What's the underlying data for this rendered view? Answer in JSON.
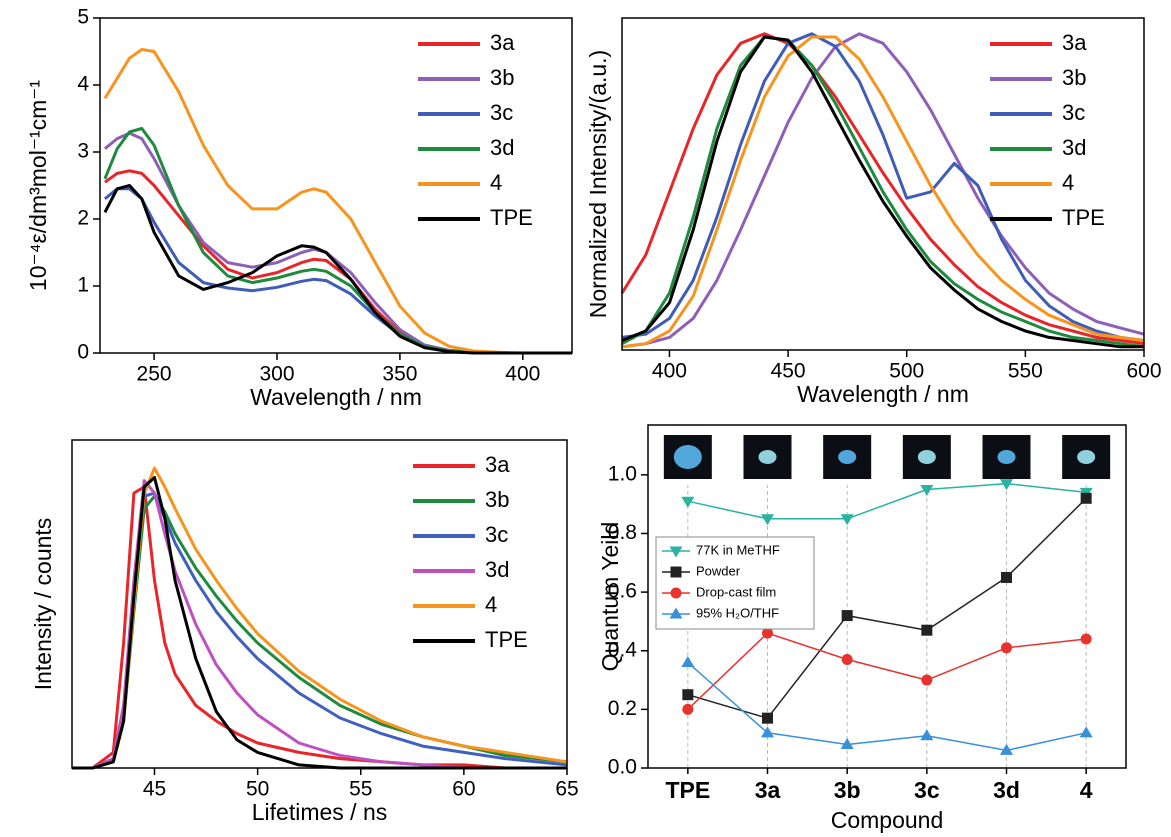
{
  "chart_data": [
    {
      "type": "line",
      "xlabel": "Wavelength / nm",
      "ylabel": "10⁻⁴ε/dm³mol⁻¹cm⁻¹",
      "x": [
        230,
        235,
        240,
        245,
        250,
        260,
        270,
        280,
        290,
        300,
        310,
        315,
        320,
        330,
        340,
        350,
        360,
        370,
        380,
        390,
        400,
        420
      ],
      "xlim": [
        228,
        420
      ],
      "xticks": [
        250,
        300,
        350,
        400
      ],
      "ylim": [
        0,
        5
      ],
      "yticks": [
        0,
        1,
        2,
        3,
        4,
        5
      ],
      "legend": "upper right",
      "series": [
        {
          "name": "3a",
          "color": "#e8262a",
          "values": [
            2.55,
            2.68,
            2.72,
            2.68,
            2.5,
            2.05,
            1.6,
            1.25,
            1.12,
            1.2,
            1.35,
            1.4,
            1.38,
            1.1,
            0.65,
            0.3,
            0.1,
            0.03,
            0.01,
            0,
            0,
            0
          ]
        },
        {
          "name": "3b",
          "color": "#8e5fb8",
          "values": [
            3.05,
            3.2,
            3.28,
            3.2,
            2.9,
            2.2,
            1.65,
            1.35,
            1.28,
            1.35,
            1.5,
            1.55,
            1.5,
            1.2,
            0.75,
            0.35,
            0.12,
            0.04,
            0.01,
            0,
            0,
            0
          ]
        },
        {
          "name": "3c",
          "color": "#3f5cb8",
          "values": [
            2.3,
            2.45,
            2.45,
            2.3,
            1.95,
            1.35,
            1.05,
            0.97,
            0.93,
            0.98,
            1.07,
            1.1,
            1.08,
            0.88,
            0.55,
            0.27,
            0.09,
            0.03,
            0.01,
            0,
            0,
            0
          ]
        },
        {
          "name": "3d",
          "color": "#1d8a3e",
          "values": [
            2.6,
            3.05,
            3.3,
            3.35,
            3.1,
            2.2,
            1.5,
            1.15,
            1.05,
            1.12,
            1.22,
            1.25,
            1.22,
            1.0,
            0.6,
            0.28,
            0.1,
            0.03,
            0.01,
            0,
            0,
            0
          ]
        },
        {
          "name": "4",
          "color": "#f7941d",
          "values": [
            3.8,
            4.1,
            4.4,
            4.53,
            4.5,
            3.9,
            3.1,
            2.5,
            2.15,
            2.15,
            2.4,
            2.45,
            2.4,
            2.0,
            1.35,
            0.7,
            0.3,
            0.1,
            0.03,
            0.01,
            0,
            0
          ]
        },
        {
          "name": "TPE",
          "color": "#000000",
          "values": [
            2.1,
            2.45,
            2.5,
            2.3,
            1.8,
            1.15,
            0.95,
            1.05,
            1.2,
            1.45,
            1.6,
            1.58,
            1.5,
            1.1,
            0.6,
            0.25,
            0.08,
            0.02,
            0,
            0,
            0,
            0
          ]
        }
      ]
    },
    {
      "type": "line",
      "xlabel": "Wavelength / nm",
      "ylabel": "Normalized Intensity/(a.u.)",
      "x": [
        380,
        390,
        400,
        410,
        420,
        430,
        440,
        450,
        460,
        470,
        480,
        490,
        500,
        510,
        520,
        530,
        540,
        550,
        560,
        570,
        580,
        590,
        600
      ],
      "xlim": [
        380,
        600
      ],
      "xticks": [
        400,
        450,
        500,
        550,
        600
      ],
      "ylim": [
        0,
        1.05
      ],
      "legend": "upper right",
      "series": [
        {
          "name": "3a",
          "color": "#e8262a",
          "values": [
            0.18,
            0.3,
            0.5,
            0.7,
            0.87,
            0.97,
            1.0,
            0.97,
            0.9,
            0.8,
            0.68,
            0.56,
            0.45,
            0.35,
            0.27,
            0.2,
            0.15,
            0.11,
            0.08,
            0.06,
            0.04,
            0.03,
            0.02
          ]
        },
        {
          "name": "3b",
          "color": "#8e5fb8",
          "values": [
            0.01,
            0.02,
            0.04,
            0.1,
            0.22,
            0.38,
            0.55,
            0.72,
            0.86,
            0.96,
            1.0,
            0.97,
            0.88,
            0.76,
            0.62,
            0.48,
            0.36,
            0.26,
            0.18,
            0.13,
            0.09,
            0.07,
            0.05
          ]
        },
        {
          "name": "3c",
          "color": "#3f5cb8",
          "values": [
            0.04,
            0.05,
            0.1,
            0.22,
            0.42,
            0.65,
            0.85,
            0.97,
            1.0,
            0.96,
            0.85,
            0.68,
            0.48,
            0.5,
            0.59,
            0.52,
            0.35,
            0.22,
            0.14,
            0.09,
            0.06,
            0.04,
            0.03
          ]
        },
        {
          "name": "3d",
          "color": "#1d8a3e",
          "values": [
            0.02,
            0.06,
            0.18,
            0.42,
            0.7,
            0.9,
            0.99,
            0.98,
            0.9,
            0.78,
            0.64,
            0.5,
            0.38,
            0.28,
            0.21,
            0.16,
            0.12,
            0.09,
            0.06,
            0.04,
            0.03,
            0.02,
            0.01
          ]
        },
        {
          "name": "4",
          "color": "#f7941d",
          "values": [
            0.01,
            0.02,
            0.06,
            0.17,
            0.38,
            0.6,
            0.8,
            0.93,
            0.99,
            0.99,
            0.92,
            0.8,
            0.66,
            0.52,
            0.4,
            0.3,
            0.22,
            0.16,
            0.11,
            0.08,
            0.05,
            0.04,
            0.03
          ]
        },
        {
          "name": "TPE",
          "color": "#000000",
          "values": [
            0.03,
            0.06,
            0.15,
            0.38,
            0.66,
            0.88,
            0.99,
            0.98,
            0.88,
            0.74,
            0.6,
            0.47,
            0.36,
            0.26,
            0.19,
            0.13,
            0.09,
            0.06,
            0.04,
            0.03,
            0.02,
            0.01,
            0.01
          ]
        }
      ]
    },
    {
      "type": "line",
      "xlabel": "Lifetimes / ns",
      "ylabel": "Intensity / counts",
      "x": [
        41,
        42,
        43,
        43.5,
        44,
        44.5,
        45,
        45.5,
        46,
        47,
        48,
        49,
        50,
        52,
        54,
        56,
        58,
        60,
        62,
        65
      ],
      "xlim": [
        41,
        65
      ],
      "xticks": [
        45,
        50,
        55,
        60,
        65
      ],
      "ylim": [
        0,
        1.05
      ],
      "legend": "upper right",
      "series": [
        {
          "name": "3a",
          "color": "#e8262a",
          "values": [
            0,
            0,
            0.05,
            0.4,
            0.88,
            0.9,
            0.6,
            0.4,
            0.3,
            0.2,
            0.15,
            0.11,
            0.08,
            0.05,
            0.03,
            0.02,
            0.01,
            0.01,
            0,
            0
          ]
        },
        {
          "name": "3b",
          "color": "#1d8a3e",
          "values": [
            0,
            0,
            0.02,
            0.15,
            0.5,
            0.83,
            0.87,
            0.82,
            0.75,
            0.64,
            0.55,
            0.47,
            0.4,
            0.29,
            0.2,
            0.14,
            0.1,
            0.07,
            0.04,
            0.02
          ]
        },
        {
          "name": "3c",
          "color": "#4060c0",
          "values": [
            0,
            0,
            0.02,
            0.17,
            0.55,
            0.87,
            0.88,
            0.8,
            0.72,
            0.6,
            0.5,
            0.42,
            0.35,
            0.24,
            0.16,
            0.11,
            0.07,
            0.05,
            0.03,
            0.01
          ]
        },
        {
          "name": "3d",
          "color": "#c050c0",
          "values": [
            0,
            0,
            0.03,
            0.2,
            0.6,
            0.92,
            0.88,
            0.75,
            0.63,
            0.46,
            0.33,
            0.24,
            0.17,
            0.08,
            0.04,
            0.02,
            0.01,
            0,
            0,
            0
          ]
        },
        {
          "name": "4",
          "color": "#f7941d",
          "values": [
            0,
            0,
            0.02,
            0.15,
            0.52,
            0.88,
            0.96,
            0.9,
            0.83,
            0.7,
            0.6,
            0.51,
            0.43,
            0.31,
            0.22,
            0.15,
            0.1,
            0.07,
            0.05,
            0.02
          ]
        },
        {
          "name": "TPE",
          "color": "#000000",
          "values": [
            0,
            0,
            0.02,
            0.15,
            0.55,
            0.9,
            0.93,
            0.8,
            0.6,
            0.35,
            0.18,
            0.09,
            0.05,
            0.01,
            0,
            0,
            0,
            0,
            0,
            0
          ]
        }
      ]
    },
    {
      "type": "line",
      "xlabel": "Compound",
      "ylabel": "Quantum Yeild",
      "categories": [
        "TPE",
        "3a",
        "3b",
        "3c",
        "3d",
        "4"
      ],
      "ylim": [
        0,
        1.17
      ],
      "yticks": [
        {
          "value": 0,
          "label": "0.0"
        },
        0.2,
        0.4,
        0.6,
        0.8,
        {
          "value": 1,
          "label": "1.0"
        }
      ],
      "xgrid": true,
      "legend": "center left",
      "series": [
        {
          "name": "77K in MeTHF",
          "color": "#2ab3a0",
          "marker": "v",
          "values": [
            0.91,
            0.85,
            0.85,
            0.95,
            0.97,
            0.94
          ]
        },
        {
          "name": "Powder",
          "color": "#222222",
          "marker": "s",
          "values": [
            0.25,
            0.17,
            0.52,
            0.47,
            0.65,
            0.92
          ]
        },
        {
          "name": "Drop-cast film",
          "color": "#e8322e",
          "marker": "o",
          "values": [
            0.2,
            0.46,
            0.37,
            0.3,
            0.41,
            0.44
          ]
        },
        {
          "name": "95% H₂O/THF",
          "color": "#3a8fd9",
          "marker": "^",
          "values": [
            0.36,
            0.12,
            0.08,
            0.11,
            0.06,
            0.12
          ]
        }
      ]
    }
  ]
}
